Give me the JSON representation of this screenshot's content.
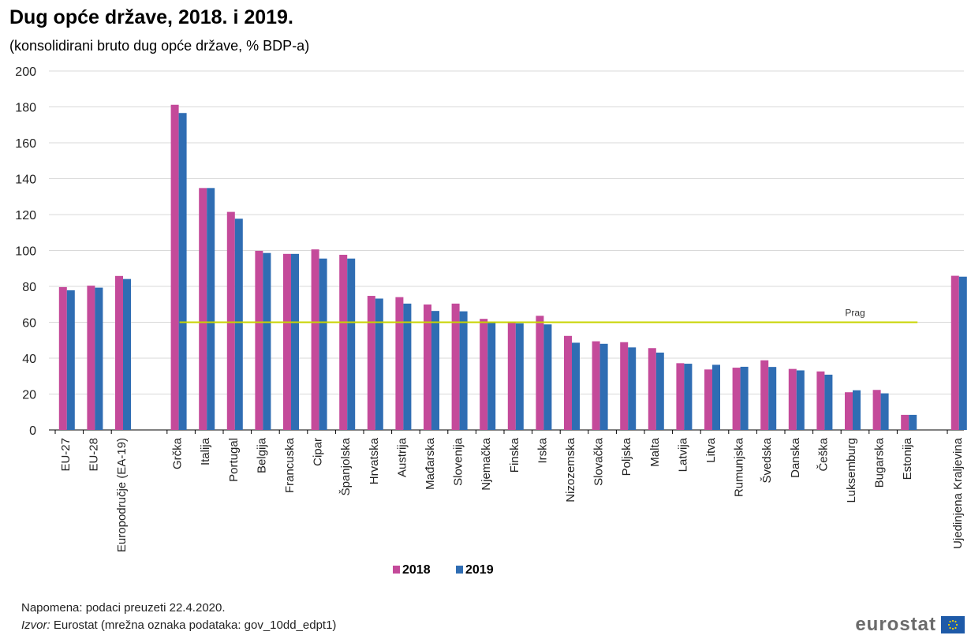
{
  "chart_data": {
    "type": "bar",
    "title": "Dug opće države, 2018. i 2019.",
    "subtitle": "(konsolidirani bruto dug opće države, % BDP-a)",
    "categories": [
      "EU-27",
      "EU-28",
      "Europodručje (EA-19)",
      "Grčka",
      "Italija",
      "Portugal",
      "Belgija",
      "Francuska",
      "Cipar",
      "Španjolska",
      "Hrvatska",
      "Austrija",
      "Mađarska",
      "Slovenija",
      "Njemačka",
      "Finska",
      "Irska",
      "Nizozemska",
      "Slovačka",
      "Poljska",
      "Malta",
      "Latvija",
      "Litva",
      "Rumunjska",
      "Švedska",
      "Danska",
      "Češka",
      "Luksemburg",
      "Bugarska",
      "Estonija",
      "Ujedinjena Kraljevina"
    ],
    "series": [
      {
        "name": "2018",
        "color": "#c44a9a",
        "values": [
          79.6,
          80.4,
          85.8,
          181.2,
          134.8,
          121.5,
          99.8,
          98.1,
          100.6,
          97.6,
          74.7,
          74.0,
          69.9,
          70.4,
          61.9,
          59.6,
          63.6,
          52.4,
          49.4,
          48.9,
          45.6,
          37.2,
          33.7,
          34.7,
          38.8,
          34.0,
          32.6,
          21.0,
          22.3,
          8.4,
          85.9
        ]
      },
      {
        "name": "2019",
        "color": "#2f6db3",
        "values": [
          77.8,
          79.3,
          84.1,
          176.6,
          134.8,
          117.7,
          98.6,
          98.1,
          95.5,
          95.5,
          73.2,
          70.4,
          66.3,
          66.1,
          59.8,
          59.4,
          58.8,
          48.6,
          48.0,
          46.0,
          43.1,
          36.9,
          36.3,
          35.2,
          35.1,
          33.2,
          30.8,
          22.1,
          20.4,
          8.4,
          85.4
        ]
      }
    ],
    "ylim": [
      0,
      200
    ],
    "yticks": [
      0,
      20,
      40,
      60,
      80,
      100,
      120,
      140,
      160,
      180,
      200
    ],
    "grid": true,
    "reference_line": {
      "label": "Prag",
      "value": 60,
      "color": "#c8d400"
    },
    "legend_position": "bottom-center"
  },
  "footer": {
    "note": "Napomena: podaci preuzeti 22.4.2020.",
    "source_label": "Izvor:",
    "source_text": " Eurostat (mrežna oznaka podataka: gov_10dd_edpt1)"
  },
  "logo": {
    "text": "eurostat",
    "icon": "eu-flag-icon"
  }
}
